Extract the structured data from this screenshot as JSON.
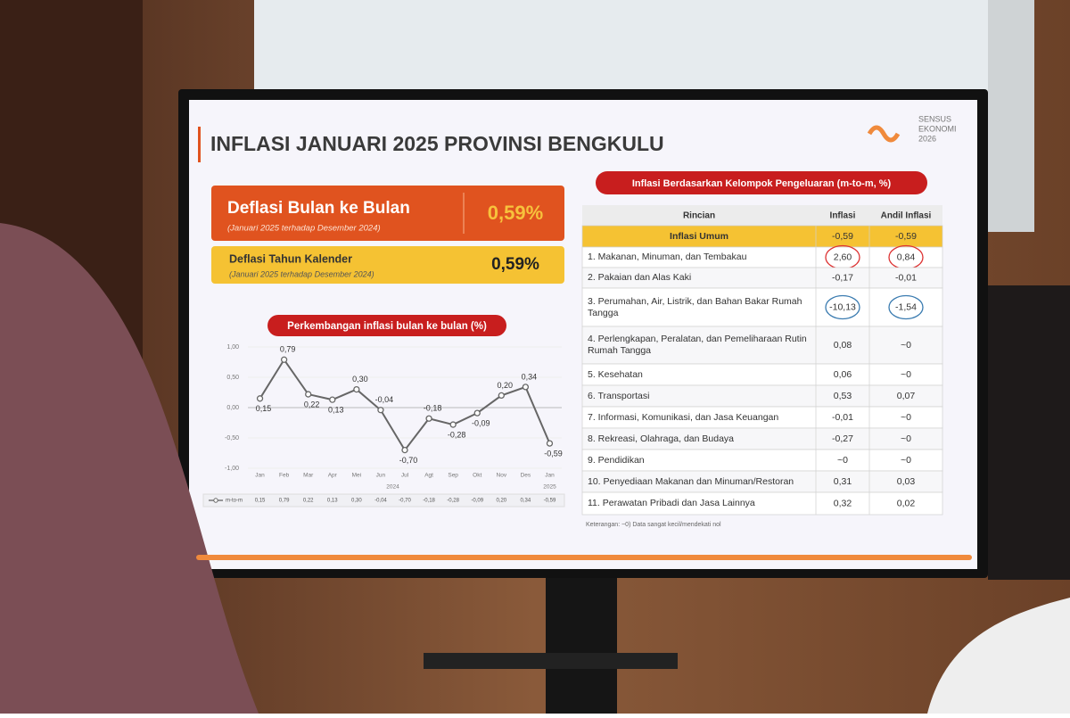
{
  "slide": {
    "title": "INFLASI JANUARI 2025 PROVINSI BENGKULU",
    "logo": [
      "SENSUS",
      "EKONOMI",
      "2026"
    ],
    "monthly": {
      "label": "Deflasi Bulan ke Bulan",
      "note": "(Januari 2025 terhadap Desember 2024)",
      "value": "0,59%"
    },
    "calendar": {
      "label": "Deflasi Tahun Kalender",
      "note": "(Januari 2025 terhadap Desember 2024)",
      "value": "0,59%"
    }
  },
  "chart_data": {
    "type": "line",
    "title": "Perkembangan inflasi bulan ke bulan (%)",
    "categories": [
      "Jan",
      "Feb",
      "Mar",
      "Apr",
      "Mei",
      "Jun",
      "Jul",
      "Agt",
      "Sep",
      "Okt",
      "Nov",
      "Des",
      "Jan"
    ],
    "year_labels": [
      "2024",
      "2025"
    ],
    "series": [
      {
        "name": "m-to-m",
        "color": "#666666",
        "values": [
          0.15,
          0.79,
          0.22,
          0.13,
          0.3,
          -0.04,
          -0.7,
          -0.18,
          -0.28,
          -0.09,
          0.2,
          0.34,
          -0.59
        ],
        "value_labels": [
          "0,15",
          "0,79",
          "0,22",
          "0,13",
          "0,30",
          "-0,04",
          "-0,70",
          "-0,18",
          "-0,28",
          "-0,09",
          "0,20",
          "0,34",
          "-0,59"
        ]
      }
    ],
    "ylim": [
      -1,
      1
    ],
    "yticks": [
      {
        "value": 1,
        "label": "1,00"
      },
      {
        "value": 0.5,
        "label": "0,50"
      },
      {
        "value": 0,
        "label": "0,00"
      },
      {
        "value": -0.5,
        "label": "-0,50"
      },
      {
        "value": -1,
        "label": "-1,00"
      }
    ]
  },
  "table": {
    "title": "Inflasi Berdasarkan Kelompok Pengeluaran (m-to-m, %)",
    "columns": [
      "Rincian",
      "Inflasi",
      "Andil Inflasi"
    ],
    "rows": [
      [
        "Inflasi Umum",
        "-0,59",
        "-0,59"
      ],
      [
        "1. Makanan, Minuman, dan Tembakau",
        "2,60",
        "0,84"
      ],
      [
        "2. Pakaian dan Alas Kaki",
        "-0,17",
        "-0,01"
      ],
      [
        "3. Perumahan, Air, Listrik, dan Bahan Bakar Rumah Tangga",
        "-10,13",
        "-1,54"
      ],
      [
        "4. Perlengkapan, Peralatan, dan Pemeliharaan Rutin Rumah Tangga",
        "0,08",
        "~0"
      ],
      [
        "5. Kesehatan",
        "0,06",
        "~0"
      ],
      [
        "6. Transportasi",
        "0,53",
        "0,07"
      ],
      [
        "7. Informasi, Komunikasi, dan Jasa Keuangan",
        "-0,01",
        "~0"
      ],
      [
        "8. Rekreasi, Olahraga, dan Budaya",
        "-0,27",
        "~0"
      ],
      [
        "9. Pendidikan",
        "~0",
        "~0"
      ],
      [
        "10. Penyediaan Makanan dan Minuman/Restoran",
        "0,31",
        "0,03"
      ],
      [
        "11. Perawatan Pribadi dan Jasa Lainnya",
        "0,32",
        "0,02"
      ]
    ],
    "note": "Keterangan: ~0) Data sangat kecil/mendekati nol"
  }
}
